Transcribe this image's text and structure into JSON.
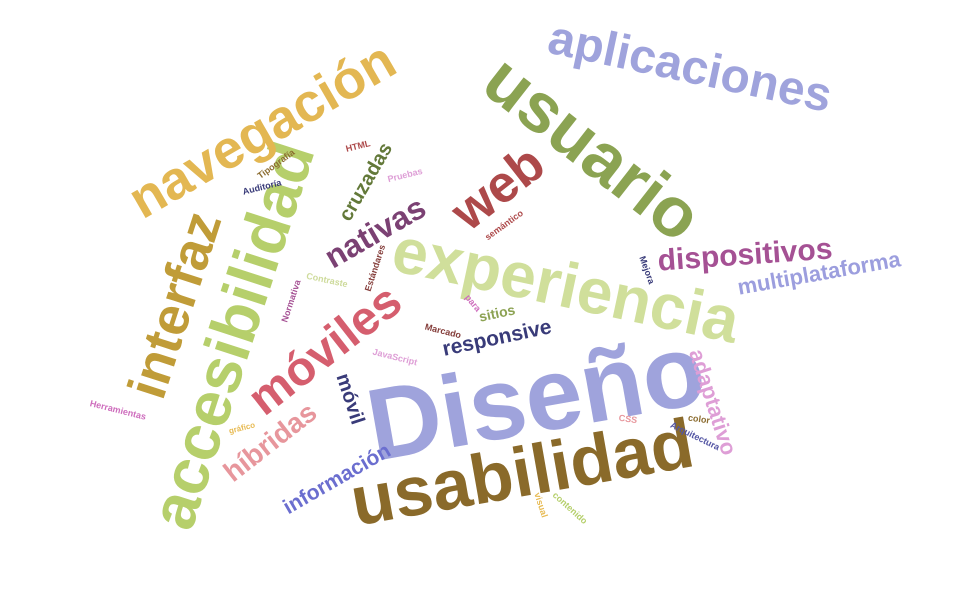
{
  "words": [
    {
      "id": "disenio",
      "text": "Diseño",
      "color": "#9fa3dc"
    },
    {
      "id": "usabilidad",
      "text": "usabilidad",
      "color": "#8a6a2a"
    },
    {
      "id": "experiencia",
      "text": "experiencia",
      "color": "#d0df9b"
    },
    {
      "id": "accesibilidad",
      "text": "accesibilidad",
      "color": "#b6cf6b"
    },
    {
      "id": "usuario",
      "text": "usuario",
      "color": "#8ba352"
    },
    {
      "id": "aplicaciones",
      "text": "aplicaciones",
      "color": "#9fa3dc"
    },
    {
      "id": "navegacion",
      "text": "navegación",
      "color": "#e3b752"
    },
    {
      "id": "interfaz",
      "text": "interfaz",
      "color": "#c09c38"
    },
    {
      "id": "moviles",
      "text": "móviles",
      "color": "#d55e6e"
    },
    {
      "id": "web",
      "text": "web",
      "color": "#ad494a"
    },
    {
      "id": "nativas",
      "text": "nativas",
      "color": "#7b4173"
    },
    {
      "id": "hibridas",
      "text": "híbridas",
      "color": "#e7969c"
    },
    {
      "id": "dispositivos",
      "text": "dispositivos",
      "color": "#a55194"
    },
    {
      "id": "multiplataforma",
      "text": "multiplataforma",
      "color": "#9c9ede"
    },
    {
      "id": "adaptativo",
      "text": "adaptativo",
      "color": "#de9ed6"
    },
    {
      "id": "responsive",
      "text": "responsive",
      "color": "#393b79"
    },
    {
      "id": "informacion",
      "text": "información",
      "color": "#6b6ecf"
    },
    {
      "id": "movil",
      "text": "móvil",
      "color": "#393b79"
    },
    {
      "id": "cruzadas",
      "text": "cruzadas",
      "color": "#637939"
    },
    {
      "id": "sitios",
      "text": "sitios",
      "color": "#8ca252"
    },
    {
      "id": "herramientas",
      "text": "Herramientas",
      "color": "#ce6dbd"
    },
    {
      "id": "marcado",
      "text": "Marcado",
      "color": "#843c39"
    },
    {
      "id": "javascript",
      "text": "JavaScript",
      "color": "#de9ed6"
    },
    {
      "id": "grafico",
      "text": "gráfico",
      "color": "#e7ba52"
    },
    {
      "id": "css",
      "text": "CSS",
      "color": "#e7969c"
    },
    {
      "id": "color",
      "text": "color",
      "color": "#8c6d31"
    },
    {
      "id": "arquitectura",
      "text": "Arquitectura",
      "color": "#5254a3"
    },
    {
      "id": "contenido",
      "text": "contenido",
      "color": "#b5cf6b"
    },
    {
      "id": "visual",
      "text": "visual",
      "color": "#e7ba52"
    },
    {
      "id": "mejora",
      "text": "Mejora",
      "color": "#393b79"
    },
    {
      "id": "para",
      "text": "para",
      "color": "#ce6dbd"
    },
    {
      "id": "estandares",
      "text": "Estándares",
      "color": "#843c39"
    },
    {
      "id": "contraste",
      "text": "Contraste",
      "color": "#cedb9c"
    },
    {
      "id": "normativa",
      "text": "Normativa",
      "color": "#a55194"
    },
    {
      "id": "auditoria",
      "text": "Auditoría",
      "color": "#393b79"
    },
    {
      "id": "tipografia",
      "text": "Tipografía",
      "color": "#8c6d31"
    },
    {
      "id": "html",
      "text": "HTML",
      "color": "#ad494a"
    },
    {
      "id": "pruebas",
      "text": "Pruebas",
      "color": "#de9ed6"
    },
    {
      "id": "semantico",
      "text": "semántico",
      "color": "#ad494a"
    }
  ]
}
